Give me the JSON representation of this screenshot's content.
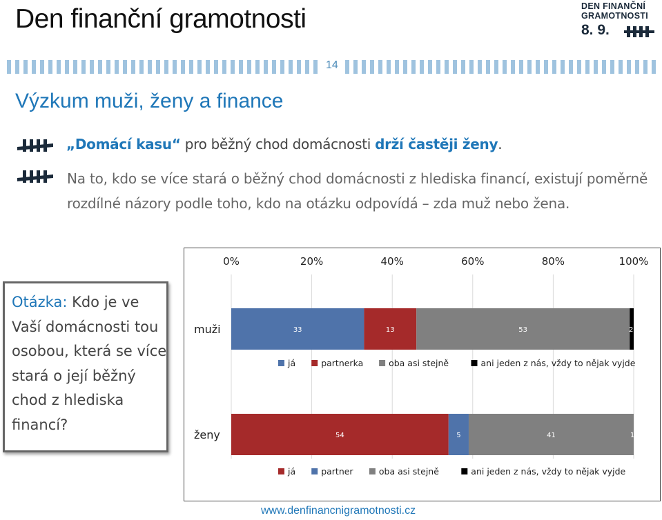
{
  "header": {
    "title": "Den finanční gramotnosti",
    "logo_line1": "DEN FINANČNÍ",
    "logo_line2": "GRAMOTNOSTI",
    "logo_date": "8. 9.",
    "slide_number": "14"
  },
  "section_title": "Výzkum muži, ženy a finance",
  "bullets": {
    "b1_quote": "„Domácí kasu“",
    "b1_text": " pro běžný chod domácnosti ",
    "b1_strong": "drží častěji ženy",
    "b1_end": ".",
    "b2_text": "Na to, kdo se více stará o běžný chod domácnosti z hlediska financí, existují poměrně rozdílné názory podle toho, kdo na otázku odpovídá – zda muž nebo žena."
  },
  "question": {
    "label": "Otázka:",
    "text": " Kdo je ve Vaší domácnosti tou osobou, která se více stará o její běžný chod z hlediska financí?"
  },
  "colors": {
    "accent": "#1f77b8",
    "ja": "#4f73aa",
    "partner": "#a52a2a",
    "both": "#808080",
    "neither": "#000000"
  },
  "chart_data": {
    "type": "bar",
    "orientation": "horizontal",
    "stacked": true,
    "xlim": [
      0,
      100
    ],
    "x_ticks": [
      "0%",
      "20%",
      "40%",
      "60%",
      "80%",
      "100%"
    ],
    "grid": true,
    "groups": [
      {
        "category": "muži",
        "segments": [
          {
            "name": "já",
            "value": 33,
            "color": "#4f73aa"
          },
          {
            "name": "partnerka",
            "value": 13,
            "color": "#a52a2a"
          },
          {
            "name": "oba asi stejně",
            "value": 53,
            "color": "#808080"
          },
          {
            "name": "ani jeden z nás, vždy to nějak vyjde",
            "value": 2,
            "color": "#000000"
          }
        ]
      },
      {
        "category": "ženy",
        "segments": [
          {
            "name": "já",
            "value": 54,
            "color": "#a52a2a"
          },
          {
            "name": "partner",
            "value": 5,
            "color": "#4f73aa"
          },
          {
            "name": "oba asi stejně",
            "value": 41,
            "color": "#808080"
          },
          {
            "name": "ani jeden z nás, vždy to nějak vyjde",
            "value": 1,
            "color": "#000000"
          }
        ]
      }
    ]
  },
  "footer": {
    "url": "www.denfinancnigramotnosti.cz"
  }
}
